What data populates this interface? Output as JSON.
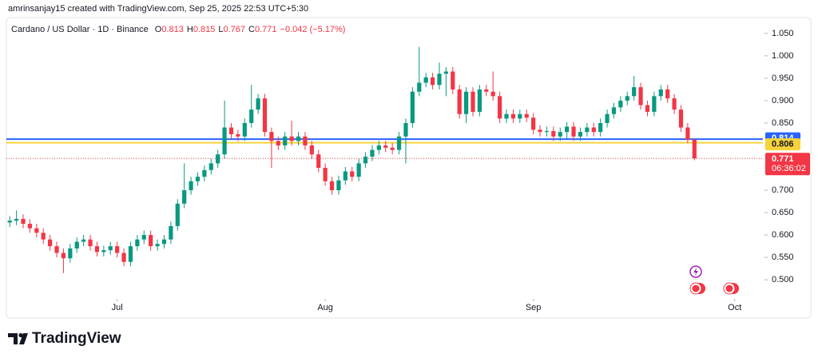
{
  "caption": "amrinsanjay15 created with TradingView.com, Sep 25, 2025 22:53 UTC+5:30",
  "brand": "TradingView",
  "chart_data": {
    "type": "candlestick",
    "title": "Cardano / US Dollar · 1D · Binance",
    "legend": {
      "labels": [
        "O",
        "H",
        "L",
        "C"
      ],
      "change": "−0.042 (−5.17%)"
    },
    "up_color": "#089981",
    "down_color": "#f23645",
    "x": [
      0,
      1,
      2,
      3,
      4,
      5,
      6,
      7,
      8,
      9,
      10,
      11,
      12,
      13,
      14,
      15,
      16,
      17,
      18,
      19,
      20,
      21,
      22,
      23,
      24,
      25,
      26,
      27,
      28,
      29,
      30,
      31,
      32,
      33,
      34,
      35,
      36,
      37,
      38,
      39,
      40,
      41,
      42,
      43,
      44,
      45,
      46,
      47,
      48,
      49,
      50,
      51,
      52,
      53,
      54,
      55,
      56,
      57,
      58,
      59,
      60,
      61,
      62,
      63,
      64,
      65,
      66,
      67,
      68,
      69,
      70,
      71,
      72,
      73,
      74,
      75,
      76,
      77,
      78,
      79,
      80,
      81,
      82,
      83,
      84,
      85,
      86,
      87,
      88,
      89,
      90,
      91,
      92,
      93,
      94,
      95,
      96,
      97,
      98,
      99,
      100,
      101,
      102
    ],
    "open": [
      0.628,
      0.632,
      0.636,
      0.625,
      0.615,
      0.605,
      0.59,
      0.575,
      0.56,
      0.548,
      0.57,
      0.585,
      0.59,
      0.575,
      0.562,
      0.566,
      0.575,
      0.56,
      0.54,
      0.575,
      0.59,
      0.6,
      0.575,
      0.58,
      0.59,
      0.62,
      0.67,
      0.7,
      0.72,
      0.73,
      0.745,
      0.76,
      0.78,
      0.84,
      0.825,
      0.82,
      0.85,
      0.88,
      0.905,
      0.83,
      0.81,
      0.8,
      0.82,
      0.81,
      0.82,
      0.8,
      0.78,
      0.75,
      0.72,
      0.7,
      0.722,
      0.742,
      0.73,
      0.76,
      0.775,
      0.79,
      0.8,
      0.795,
      0.79,
      0.82,
      0.85,
      0.92,
      0.94,
      0.952,
      0.935,
      0.96,
      0.965,
      0.925,
      0.87,
      0.92,
      0.875,
      0.925,
      0.92,
      0.91,
      0.86,
      0.87,
      0.86,
      0.87,
      0.862,
      0.835,
      0.83,
      0.832,
      0.82,
      0.83,
      0.842,
      0.82,
      0.83,
      0.84,
      0.83,
      0.85,
      0.87,
      0.885,
      0.9,
      0.91,
      0.93,
      0.89,
      0.875,
      0.91,
      0.925,
      0.905,
      0.88,
      0.84,
      0.813
    ],
    "high": [
      0.642,
      0.655,
      0.646,
      0.635,
      0.625,
      0.615,
      0.6,
      0.585,
      0.57,
      0.58,
      0.595,
      0.6,
      0.6,
      0.585,
      0.576,
      0.585,
      0.585,
      0.57,
      0.585,
      0.6,
      0.61,
      0.61,
      0.59,
      0.6,
      0.63,
      0.68,
      0.76,
      0.73,
      0.74,
      0.755,
      0.77,
      0.79,
      0.9,
      0.85,
      0.835,
      0.86,
      0.935,
      0.915,
      0.915,
      0.84,
      0.82,
      0.83,
      0.855,
      0.83,
      0.83,
      0.81,
      0.79,
      0.76,
      0.73,
      0.732,
      0.752,
      0.752,
      0.77,
      0.785,
      0.8,
      0.81,
      0.81,
      0.805,
      0.83,
      0.86,
      0.93,
      1.02,
      0.962,
      0.962,
      0.985,
      0.975,
      0.975,
      0.935,
      0.93,
      0.93,
      0.935,
      0.935,
      0.965,
      0.92,
      0.88,
      0.88,
      0.88,
      0.88,
      0.872,
      0.845,
      0.842,
      0.842,
      0.84,
      0.852,
      0.852,
      0.84,
      0.85,
      0.85,
      0.86,
      0.88,
      0.895,
      0.91,
      0.92,
      0.955,
      0.94,
      0.9,
      0.92,
      0.935,
      0.935,
      0.915,
      0.89,
      0.85,
      0.815
    ],
    "low": [
      0.618,
      0.622,
      0.615,
      0.605,
      0.595,
      0.58,
      0.565,
      0.55,
      0.515,
      0.538,
      0.56,
      0.575,
      0.565,
      0.552,
      0.552,
      0.556,
      0.55,
      0.53,
      0.53,
      0.565,
      0.58,
      0.565,
      0.565,
      0.57,
      0.58,
      0.61,
      0.66,
      0.69,
      0.71,
      0.72,
      0.735,
      0.75,
      0.77,
      0.815,
      0.81,
      0.81,
      0.84,
      0.87,
      0.82,
      0.75,
      0.79,
      0.79,
      0.8,
      0.8,
      0.79,
      0.77,
      0.74,
      0.71,
      0.69,
      0.69,
      0.712,
      0.72,
      0.72,
      0.75,
      0.765,
      0.78,
      0.785,
      0.78,
      0.78,
      0.76,
      0.84,
      0.91,
      0.93,
      0.925,
      0.925,
      0.91,
      0.915,
      0.86,
      0.85,
      0.865,
      0.865,
      0.91,
      0.9,
      0.85,
      0.85,
      0.85,
      0.85,
      0.852,
      0.825,
      0.82,
      0.82,
      0.81,
      0.81,
      0.815,
      0.81,
      0.81,
      0.82,
      0.82,
      0.82,
      0.84,
      0.86,
      0.875,
      0.89,
      0.9,
      0.88,
      0.865,
      0.865,
      0.9,
      0.895,
      0.87,
      0.83,
      0.805,
      0.767
    ],
    "close": [
      0.632,
      0.636,
      0.625,
      0.615,
      0.605,
      0.59,
      0.575,
      0.56,
      0.548,
      0.57,
      0.585,
      0.59,
      0.575,
      0.562,
      0.566,
      0.575,
      0.56,
      0.54,
      0.575,
      0.59,
      0.6,
      0.575,
      0.58,
      0.59,
      0.62,
      0.67,
      0.7,
      0.72,
      0.73,
      0.745,
      0.76,
      0.78,
      0.84,
      0.825,
      0.82,
      0.85,
      0.88,
      0.905,
      0.83,
      0.81,
      0.8,
      0.82,
      0.81,
      0.82,
      0.8,
      0.78,
      0.75,
      0.72,
      0.7,
      0.722,
      0.742,
      0.73,
      0.76,
      0.775,
      0.79,
      0.8,
      0.795,
      0.79,
      0.82,
      0.85,
      0.92,
      0.94,
      0.952,
      0.935,
      0.96,
      0.965,
      0.925,
      0.87,
      0.92,
      0.875,
      0.925,
      0.92,
      0.91,
      0.86,
      0.87,
      0.86,
      0.87,
      0.862,
      0.835,
      0.83,
      0.832,
      0.82,
      0.83,
      0.842,
      0.82,
      0.83,
      0.84,
      0.83,
      0.85,
      0.87,
      0.885,
      0.9,
      0.91,
      0.93,
      0.89,
      0.875,
      0.91,
      0.925,
      0.905,
      0.88,
      0.84,
      0.813,
      0.771
    ],
    "xlim": [
      -0.5,
      112.2
    ],
    "xticks": [
      {
        "value": 16,
        "label": "Jul"
      },
      {
        "value": 47,
        "label": "Aug"
      },
      {
        "value": 78,
        "label": "Sep"
      },
      {
        "value": 108,
        "label": "Oct"
      }
    ],
    "ylim": [
      0.461,
      1.089
    ],
    "yticks": [
      {
        "value": 0.5,
        "label": "0.500"
      },
      {
        "value": 0.55,
        "label": "0.550"
      },
      {
        "value": 0.6,
        "label": "0.600"
      },
      {
        "value": 0.65,
        "label": "0.650"
      },
      {
        "value": 0.7,
        "label": "0.700"
      },
      {
        "value": 0.75,
        "label": "0.750"
      },
      {
        "value": 0.8,
        "label": "0.800"
      },
      {
        "value": 0.85,
        "label": "0.850"
      },
      {
        "value": 0.9,
        "label": "0.900"
      },
      {
        "value": 0.95,
        "label": "0.950"
      },
      {
        "value": 1.0,
        "label": "1.000"
      },
      {
        "value": 1.05,
        "label": "1.050"
      }
    ],
    "price_lines": [
      {
        "value": 0.814,
        "color": "#2962ff"
      },
      {
        "value": 0.806,
        "color": "#f7d33a"
      }
    ],
    "countdown": "06:36:02"
  }
}
